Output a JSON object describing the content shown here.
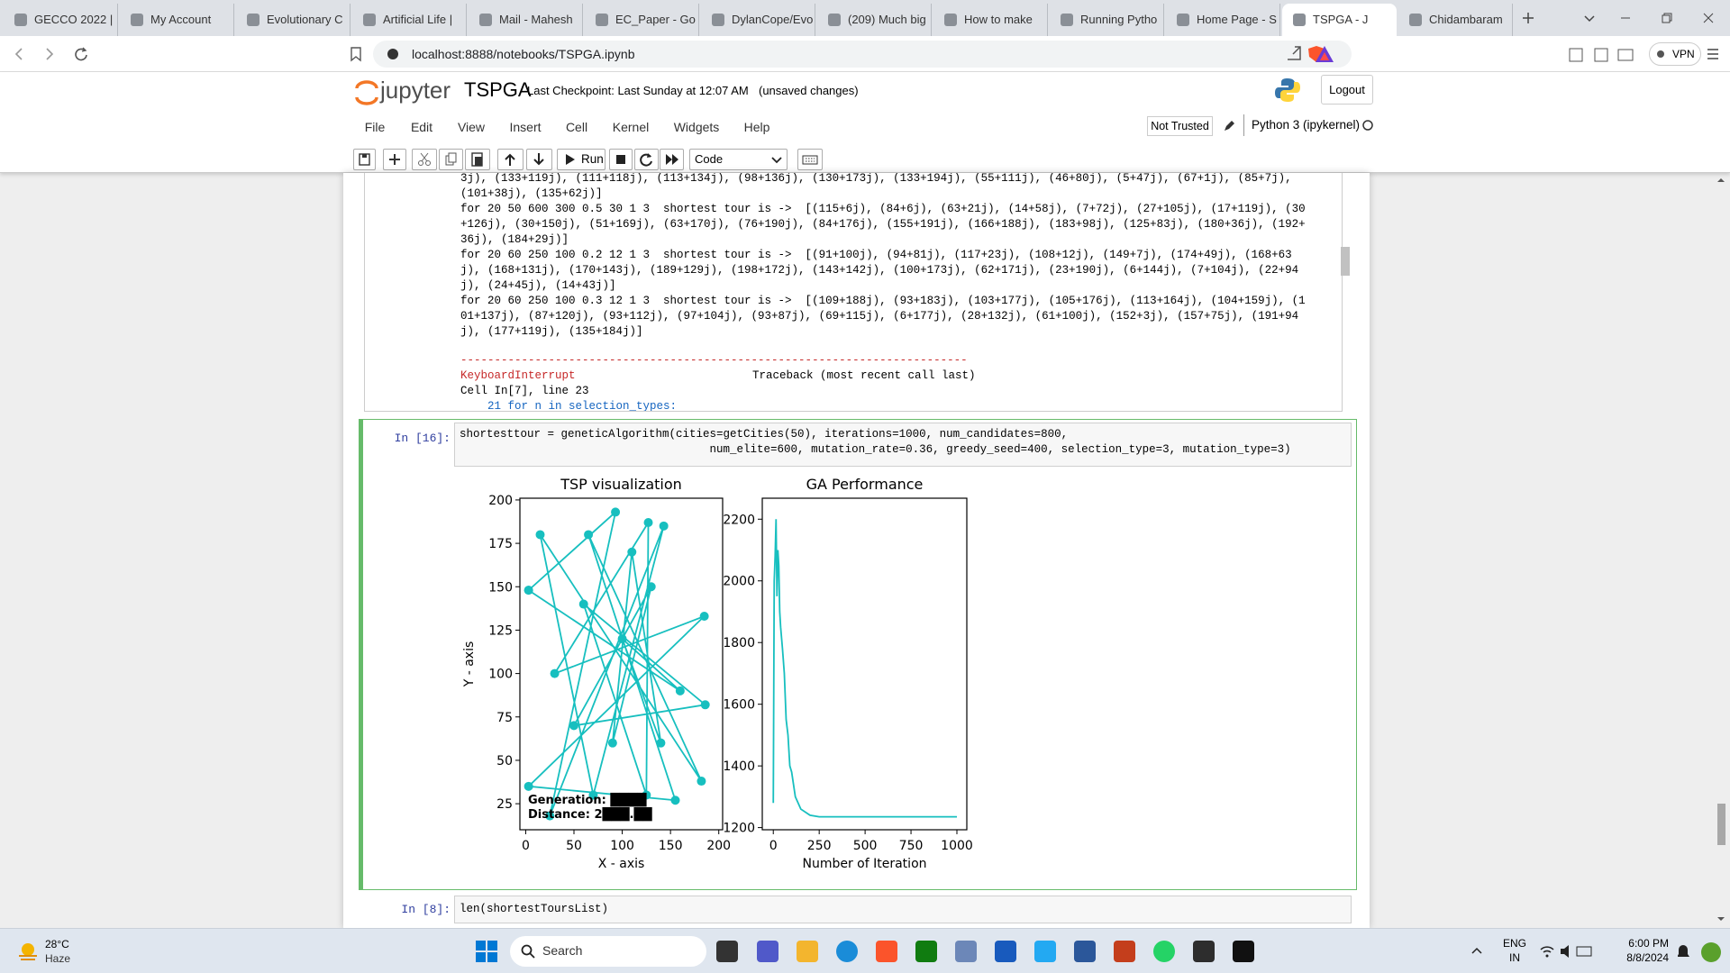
{
  "browser": {
    "tabs": [
      "GECCO 2022 |",
      "My Account",
      "Evolutionary C",
      "Artificial Life |",
      "Mail - Mahesh",
      "EC_Paper - Go",
      "DylanCope/Evo",
      "(209) Much big",
      "How to make",
      "Running Pytho",
      "Home Page - S",
      "TSPGA - J",
      "Chidambaram"
    ],
    "active_tab": 11,
    "url": "localhost:8888/notebooks/TSPGA.ipynb",
    "vpn": "VPN"
  },
  "jupyter": {
    "logo": "jupyter",
    "notebook": "TSPGA",
    "checkpoint": "Last Checkpoint: Last Sunday at 12:07 AM",
    "status": "(unsaved changes)",
    "logout": "Logout",
    "menu": [
      "File",
      "Edit",
      "View",
      "Insert",
      "Cell",
      "Kernel",
      "Widgets",
      "Help"
    ],
    "trusted": "Not Trusted",
    "kernel": "Python 3 (ipykernel)",
    "run": "Run",
    "cell_type": "Code"
  },
  "output": {
    "lines": [
      "3j), (133+119j), (111+118j), (113+134j), (98+136j), (130+173j), (133+194j), (55+111j), (46+80j), (5+47j), (67+1j), (85+7j),",
      "(101+38j), (135+62j)]",
      "for 20 50 600 300 0.5 30 1 3  shortest tour is ->  [(115+6j), (84+6j), (63+21j), (14+58j), (7+72j), (27+105j), (17+119j), (30",
      "+126j), (30+150j), (51+169j), (63+170j), (76+190j), (84+176j), (155+191j), (166+188j), (183+98j), (125+83j), (180+36j), (192+",
      "36j), (184+29j)]",
      "for 20 60 250 100 0.2 12 1 3  shortest tour is ->  [(91+100j), (94+81j), (117+23j), (108+12j), (149+7j), (174+49j), (168+63",
      "j), (168+131j), (170+143j), (189+129j), (198+172j), (143+142j), (100+173j), (62+171j), (23+190j), (6+144j), (7+104j), (22+94",
      "j), (24+45j), (14+43j)]",
      "for 20 60 250 100 0.3 12 1 3  shortest tour is ->  [(109+188j), (93+183j), (103+177j), (105+176j), (113+164j), (104+159j), (1",
      "01+137j), (87+120j), (93+112j), (97+104j), (93+87j), (69+115j), (6+177j), (28+132j), (61+100j), (152+3j), (157+75j), (191+94",
      "j), (177+119j), (135+184j)]"
    ],
    "rule": "---------------------------------------------------------------------------",
    "error_name": "KeyboardInterrupt",
    "traceback": "Traceback (most recent call last)",
    "cell_ref": "Cell In[7], line 23",
    "code_line": "    21 for n in selection_types:"
  },
  "cell": {
    "prompt": "In [16]:",
    "code": [
      "shortesttour = geneticAlgorithm(cities=getCities(50), iterations=1000, num_candidates=800,",
      "                                     num_elite=600, mutation_rate=0.36, greedy_seed=400, selection_type=3, mutation_type=3)"
    ]
  },
  "chart_data": [
    {
      "type": "line",
      "title": "TSP visualization",
      "x_label": "X - axis",
      "y_label": "Y - axis",
      "markers": true,
      "x": [
        3,
        93,
        25,
        143,
        70,
        15,
        182,
        65,
        155,
        3,
        185,
        30,
        127,
        125,
        60,
        186,
        50,
        130,
        90,
        110,
        140,
        100,
        160,
        3
      ],
      "series": [
        {
          "color": "#17bfbf",
          "values": [
            148,
            193,
            18,
            185,
            30,
            180,
            38,
            180,
            27,
            35,
            133,
            100,
            187,
            30,
            140,
            82,
            70,
            150,
            60,
            170,
            60,
            120,
            90,
            148
          ]
        }
      ],
      "xlim": [
        -6,
        204
      ],
      "xticks": [
        0,
        50,
        100,
        150,
        200
      ],
      "ylim": [
        10,
        201
      ],
      "yticks": [
        25,
        50,
        75,
        100,
        125,
        150,
        175,
        200
      ],
      "annotations": [
        "Generation: ████",
        "Distance: 2███.██"
      ]
    },
    {
      "type": "line",
      "title": "GA Performance",
      "x_label": "Number of Iteration",
      "markers": false,
      "x": [
        0,
        5,
        10,
        15,
        20,
        25,
        30,
        35,
        40,
        50,
        60,
        70,
        80,
        90,
        100,
        120,
        150,
        200,
        250,
        400,
        600,
        800,
        1000
      ],
      "series": [
        {
          "color": "#17bfbf",
          "values": [
            1280,
            2000,
            2080,
            2200,
            1950,
            2100,
            2050,
            1900,
            1850,
            1780,
            1700,
            1550,
            1500,
            1400,
            1380,
            1300,
            1260,
            1240,
            1235,
            1235,
            1235,
            1235,
            1235
          ]
        }
      ],
      "xlim": [
        -60,
        1054
      ],
      "xticks": [
        0,
        250,
        500,
        750,
        1000
      ],
      "ylim": [
        1193,
        2268
      ],
      "yticks": [
        1200,
        1400,
        1600,
        1800,
        2000,
        2200
      ]
    }
  ],
  "next_cell": {
    "prompt": "In [8]:",
    "code": "len(shortestToursList)"
  },
  "taskbar": {
    "temp": "28°C",
    "weather": "Haze",
    "search": "Search",
    "lang": "ENG",
    "region": "IN",
    "time": "6:00 PM",
    "date": "8/8/2024"
  }
}
